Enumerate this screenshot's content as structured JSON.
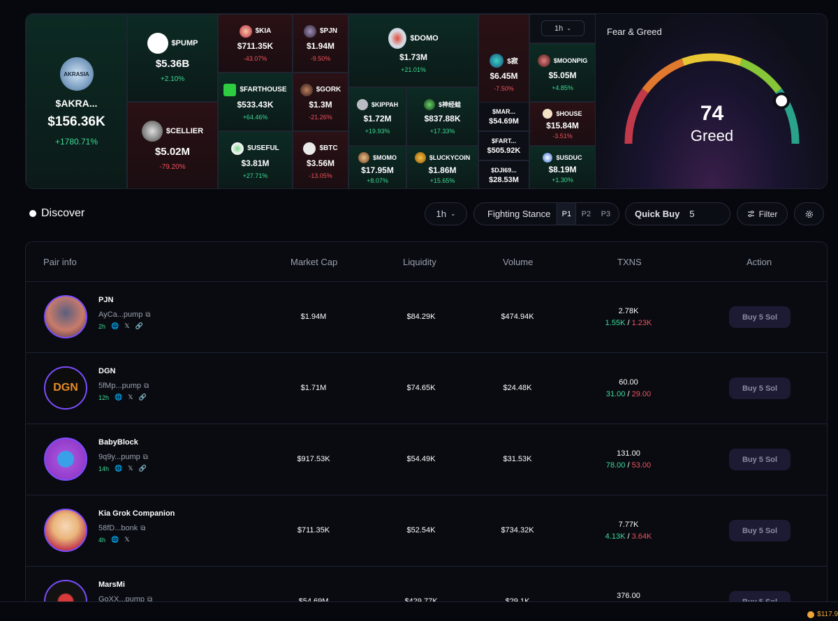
{
  "heatmap": {
    "timeframe": "1h",
    "tiles": [
      {
        "id": "akra",
        "symbol": "$AKRA...",
        "value": "$156.36K",
        "change": "+1780.71%",
        "dir": "up",
        "icon": "akrasia-logo-icon",
        "logo_text": "AKRASIA"
      },
      {
        "id": "pump",
        "symbol": "$PUMP",
        "value": "$5.36B",
        "change": "+2.10%",
        "dir": "up",
        "icon": "pump-logo-icon"
      },
      {
        "id": "cellier",
        "symbol": "$CELLIER",
        "value": "$5.02M",
        "change": "-79.20%",
        "dir": "down",
        "icon": "cellier-logo-icon"
      },
      {
        "id": "kia",
        "symbol": "$KIA",
        "value": "$711.35K",
        "change": "-43.07%",
        "dir": "down",
        "icon": "kia-logo-icon"
      },
      {
        "id": "pjn",
        "symbol": "$PJN",
        "value": "$1.94M",
        "change": "-9.50%",
        "dir": "down",
        "icon": "pjn-logo-icon"
      },
      {
        "id": "farthouse",
        "symbol": "$FARTHOUSE",
        "value": "$533.43K",
        "change": "+64.46%",
        "dir": "up",
        "icon": "farthouse-logo-icon"
      },
      {
        "id": "gork",
        "symbol": "$GORK",
        "value": "$1.3M",
        "change": "-21.26%",
        "dir": "down",
        "icon": "gork-logo-icon"
      },
      {
        "id": "useful",
        "symbol": "$USEFUL",
        "value": "$3.81M",
        "change": "+27.71%",
        "dir": "up",
        "icon": "useful-logo-icon"
      },
      {
        "id": "btc",
        "symbol": "$BTC",
        "value": "$3.56M",
        "change": "-13.05%",
        "dir": "down",
        "icon": "btc-logo-icon"
      },
      {
        "id": "domo",
        "symbol": "$DOMO",
        "value": "$1.73M",
        "change": "+21.01%",
        "dir": "up",
        "icon": "domo-logo-icon"
      },
      {
        "id": "kippah",
        "symbol": "$KIPPAH",
        "value": "$1.72M",
        "change": "+19.93%",
        "dir": "up",
        "icon": "kippah-logo-icon"
      },
      {
        "id": "shenjing",
        "symbol": "$神经蛙",
        "value": "$837.88K",
        "change": "+17.33%",
        "dir": "up",
        "icon": "frog-logo-icon"
      },
      {
        "id": "momo",
        "symbol": "$MOMO",
        "value": "$17.95M",
        "change": "+8.07%",
        "dir": "up",
        "icon": "momo-logo-icon"
      },
      {
        "id": "luckycoin",
        "symbol": "$LUCKYCOIN",
        "value": "$1.86M",
        "change": "+15.65%",
        "dir": "up",
        "icon": "luckycoin-logo-icon"
      },
      {
        "id": "ji",
        "symbol": "$寂",
        "value": "$6.45M",
        "change": "-7.50%",
        "dir": "down",
        "icon": "ji-logo-icon"
      },
      {
        "id": "mar",
        "symbol": "$MAR...",
        "value": "$54.69M",
        "change": "",
        "dir": "none",
        "icon": ""
      },
      {
        "id": "fart",
        "symbol": "$FART...",
        "value": "$505.92K",
        "change": "",
        "dir": "none",
        "icon": ""
      },
      {
        "id": "dji",
        "symbol": "$DJI69...",
        "value": "$28.53M",
        "change": "",
        "dir": "none",
        "icon": ""
      },
      {
        "id": "moonpig",
        "symbol": "$MOONPIG",
        "value": "$5.05M",
        "change": "+4.85%",
        "dir": "up",
        "icon": "moonpig-logo-icon"
      },
      {
        "id": "house",
        "symbol": "$HOUSE",
        "value": "$15.84M",
        "change": "-3.51%",
        "dir": "down",
        "icon": "house-logo-icon"
      },
      {
        "id": "usduc",
        "symbol": "$USDUC",
        "value": "$8.19M",
        "change": "+1.30%",
        "dir": "up",
        "icon": "usduc-logo-icon"
      }
    ]
  },
  "fear_greed": {
    "title": "Fear & Greed",
    "value": "74",
    "label": "Greed",
    "score_fraction": 0.74
  },
  "discover": {
    "title": "Discover",
    "timeframe": "1h",
    "stance_label": "Fighting Stance",
    "stances": [
      "P1",
      "P2",
      "P3"
    ],
    "active_stance": "P1",
    "quick_buy_label": "Quick Buy",
    "quick_buy_value": "5",
    "filter_label": "Filter"
  },
  "table": {
    "columns": [
      "Pair info",
      "Market Cap",
      "Liquidity",
      "Volume",
      "TXNS",
      "Action"
    ],
    "rows": [
      {
        "name": "PJN",
        "addr": "AyCa...pump",
        "age": "2h",
        "socials": [
          "web",
          "x",
          "link"
        ],
        "market_cap": "$1.94M",
        "liquidity": "$84.29K",
        "volume": "$474.94K",
        "txns": "2.78K",
        "buys": "1.55K",
        "sells": "1.23K",
        "action": "Buy 5 Sol",
        "avatar": "pigeon-avatar"
      },
      {
        "name": "DGN",
        "addr": "5fMp...pump",
        "age": "12h",
        "socials": [
          "web",
          "x",
          "link"
        ],
        "market_cap": "$1.71M",
        "liquidity": "$74.65K",
        "volume": "$24.48K",
        "txns": "60.00",
        "buys": "31.00",
        "sells": "29.00",
        "action": "Buy 5 Sol",
        "avatar": "dgn-avatar",
        "logo_text": "DGN"
      },
      {
        "name": "BabyBlock",
        "addr": "9q9y...pump",
        "age": "14h",
        "socials": [
          "web",
          "x",
          "link"
        ],
        "market_cap": "$917.53K",
        "liquidity": "$54.49K",
        "volume": "$31.53K",
        "txns": "131.00",
        "buys": "78.00",
        "sells": "53.00",
        "action": "Buy 5 Sol",
        "avatar": "babyblock-avatar"
      },
      {
        "name": "Kia Grok Companion",
        "addr": "58fD...bonk",
        "age": "4h",
        "socials": [
          "web",
          "x"
        ],
        "market_cap": "$711.35K",
        "liquidity": "$52.54K",
        "volume": "$734.32K",
        "txns": "7.77K",
        "buys": "4.13K",
        "sells": "3.64K",
        "action": "Buy 5 Sol",
        "avatar": "kia-avatar"
      },
      {
        "name": "MarsMi",
        "addr": "GoXX...pump",
        "age": "",
        "socials": [],
        "market_cap": "$54.69M",
        "liquidity": "$429.77K",
        "volume": "$29.1K",
        "txns": "376.00",
        "buys": "",
        "sells": "",
        "action": "Buy 5 Sol",
        "avatar": "marsmi-avatar"
      }
    ]
  },
  "ticker": {
    "value": "$117.9"
  },
  "colors": {
    "up": "#3ddc97",
    "down": "#f0525c",
    "accent": "#7c4dff",
    "background": "#07080d"
  }
}
